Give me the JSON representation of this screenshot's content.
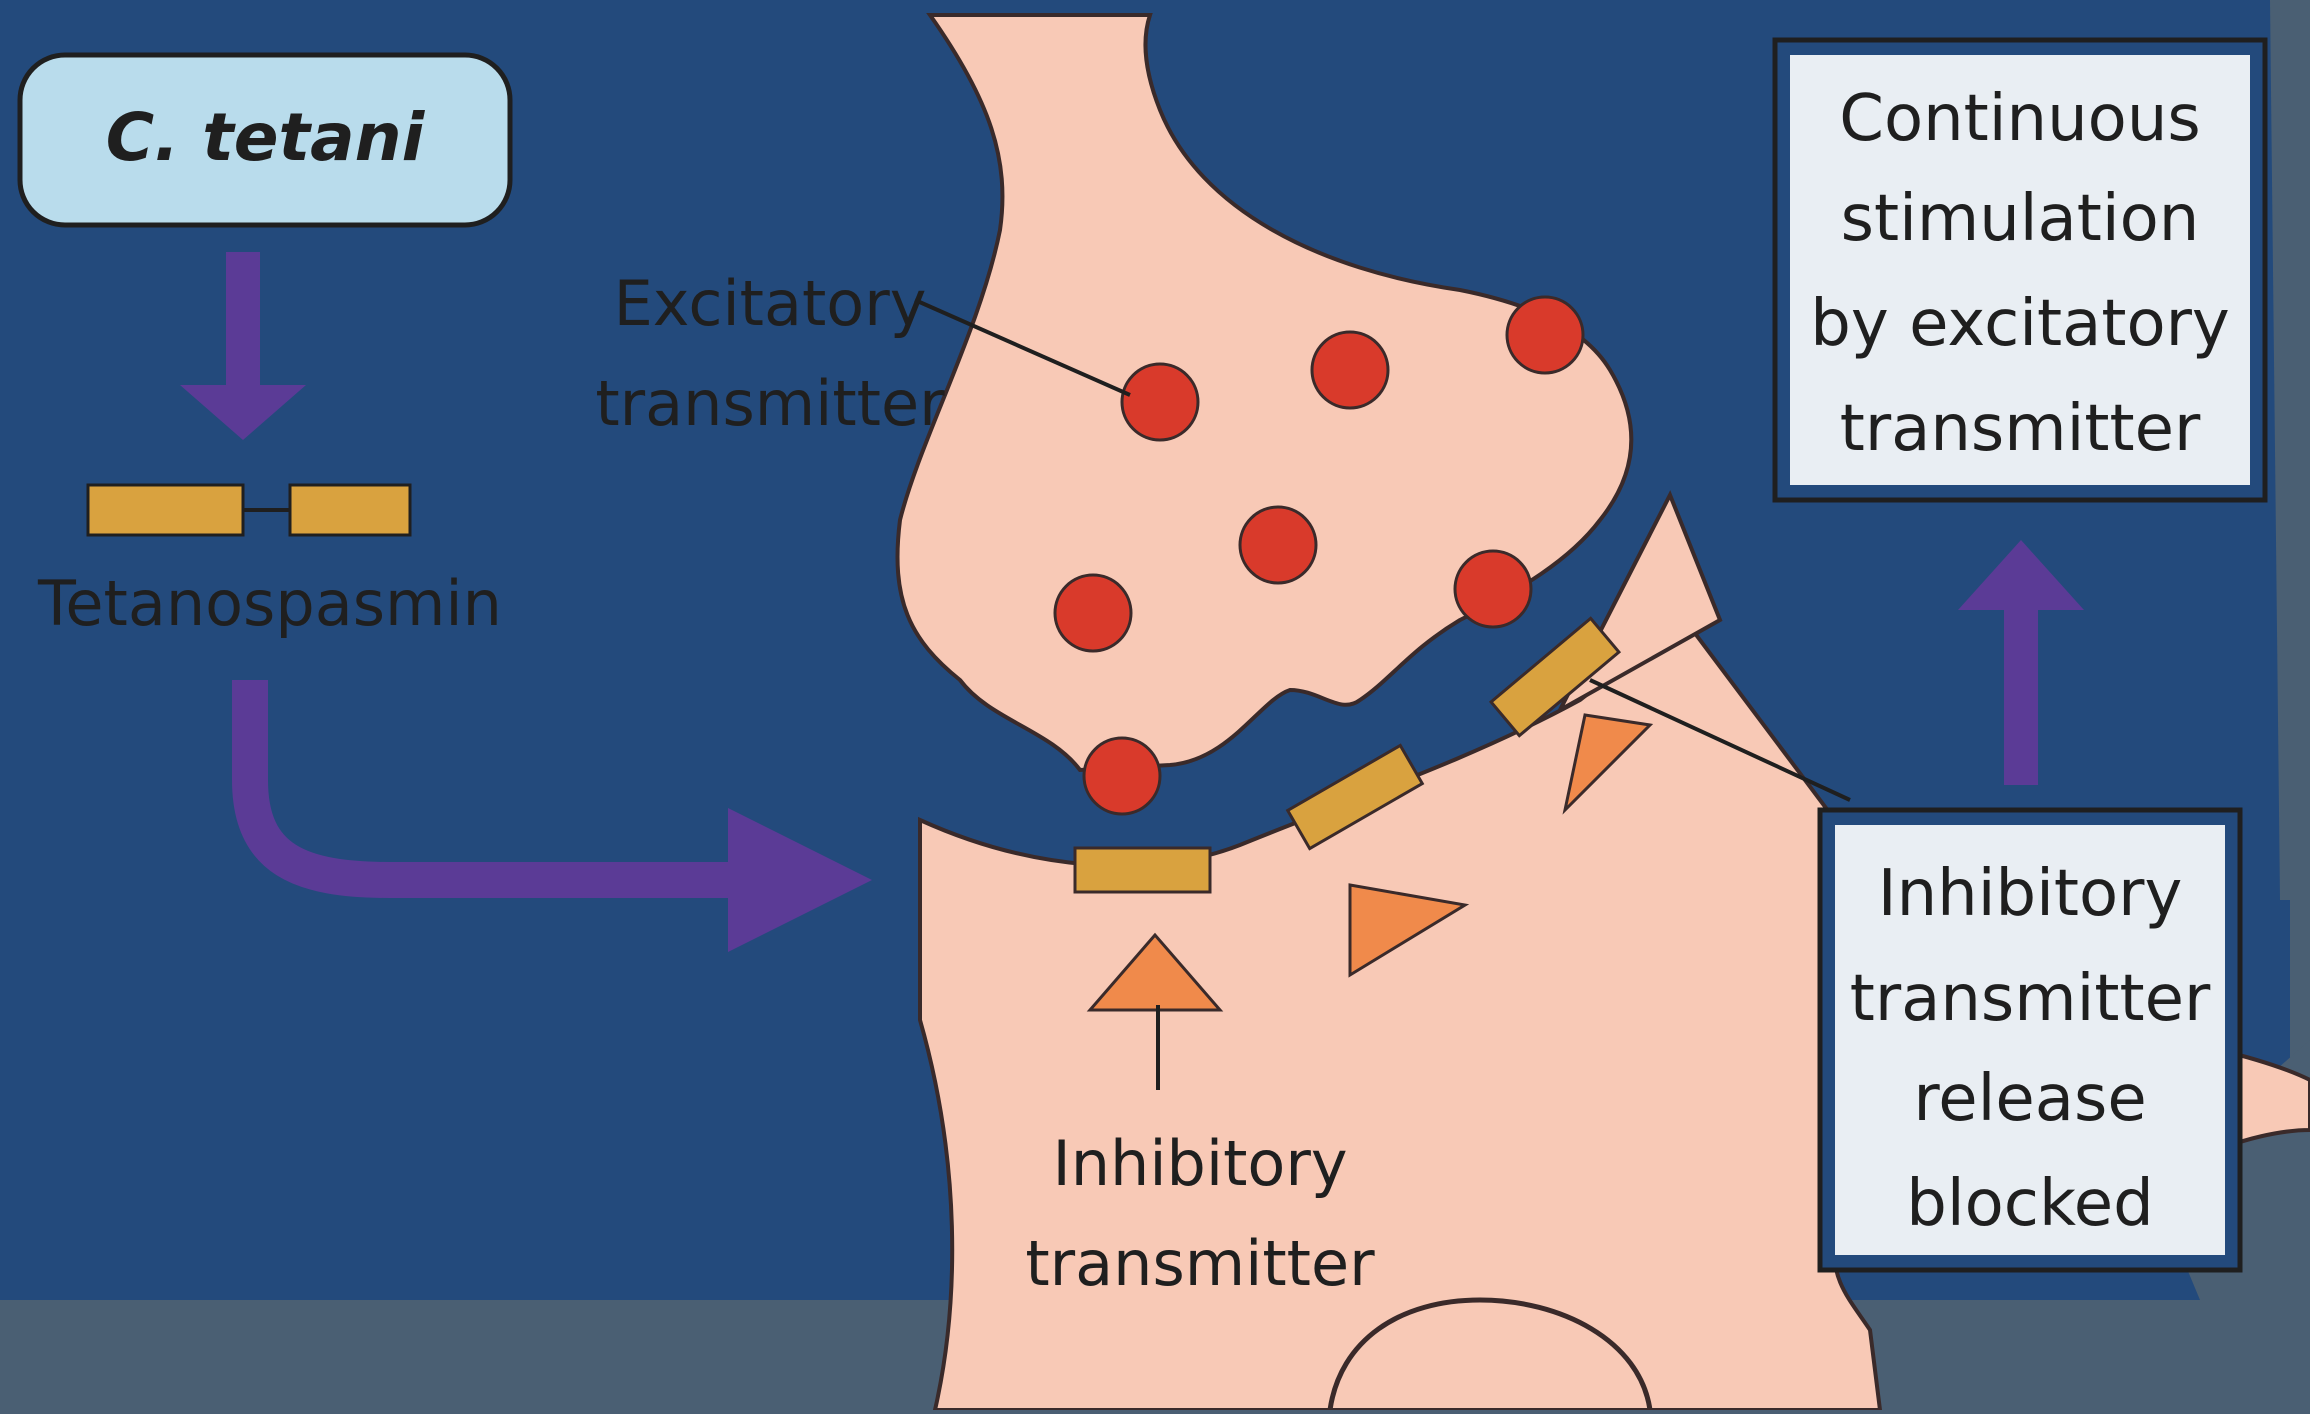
{
  "diagram": {
    "title_box": "C. tetani",
    "toxin_label": "Tetanospasmin",
    "excitatory_label": [
      "Excitatory",
      "transmitter"
    ],
    "inhibitory_label": [
      "Inhibitory",
      "transmitter"
    ],
    "result_box": [
      "Continuous",
      "stimulation",
      "by excitatory",
      "transmitter"
    ],
    "blocked_box": [
      "Inhibitory",
      "transmitter",
      "release",
      "blocked"
    ]
  },
  "colors": {
    "background": "#4a5f73",
    "panel": "#234a7c",
    "cell": "#f8c9b6",
    "vesicle": "#d93a2b",
    "toxin": "#d9a23f",
    "arrow": "#5b3b96",
    "inhibitory_triangle": "#f08a4b",
    "title_box_fill": "#b9dcec"
  }
}
